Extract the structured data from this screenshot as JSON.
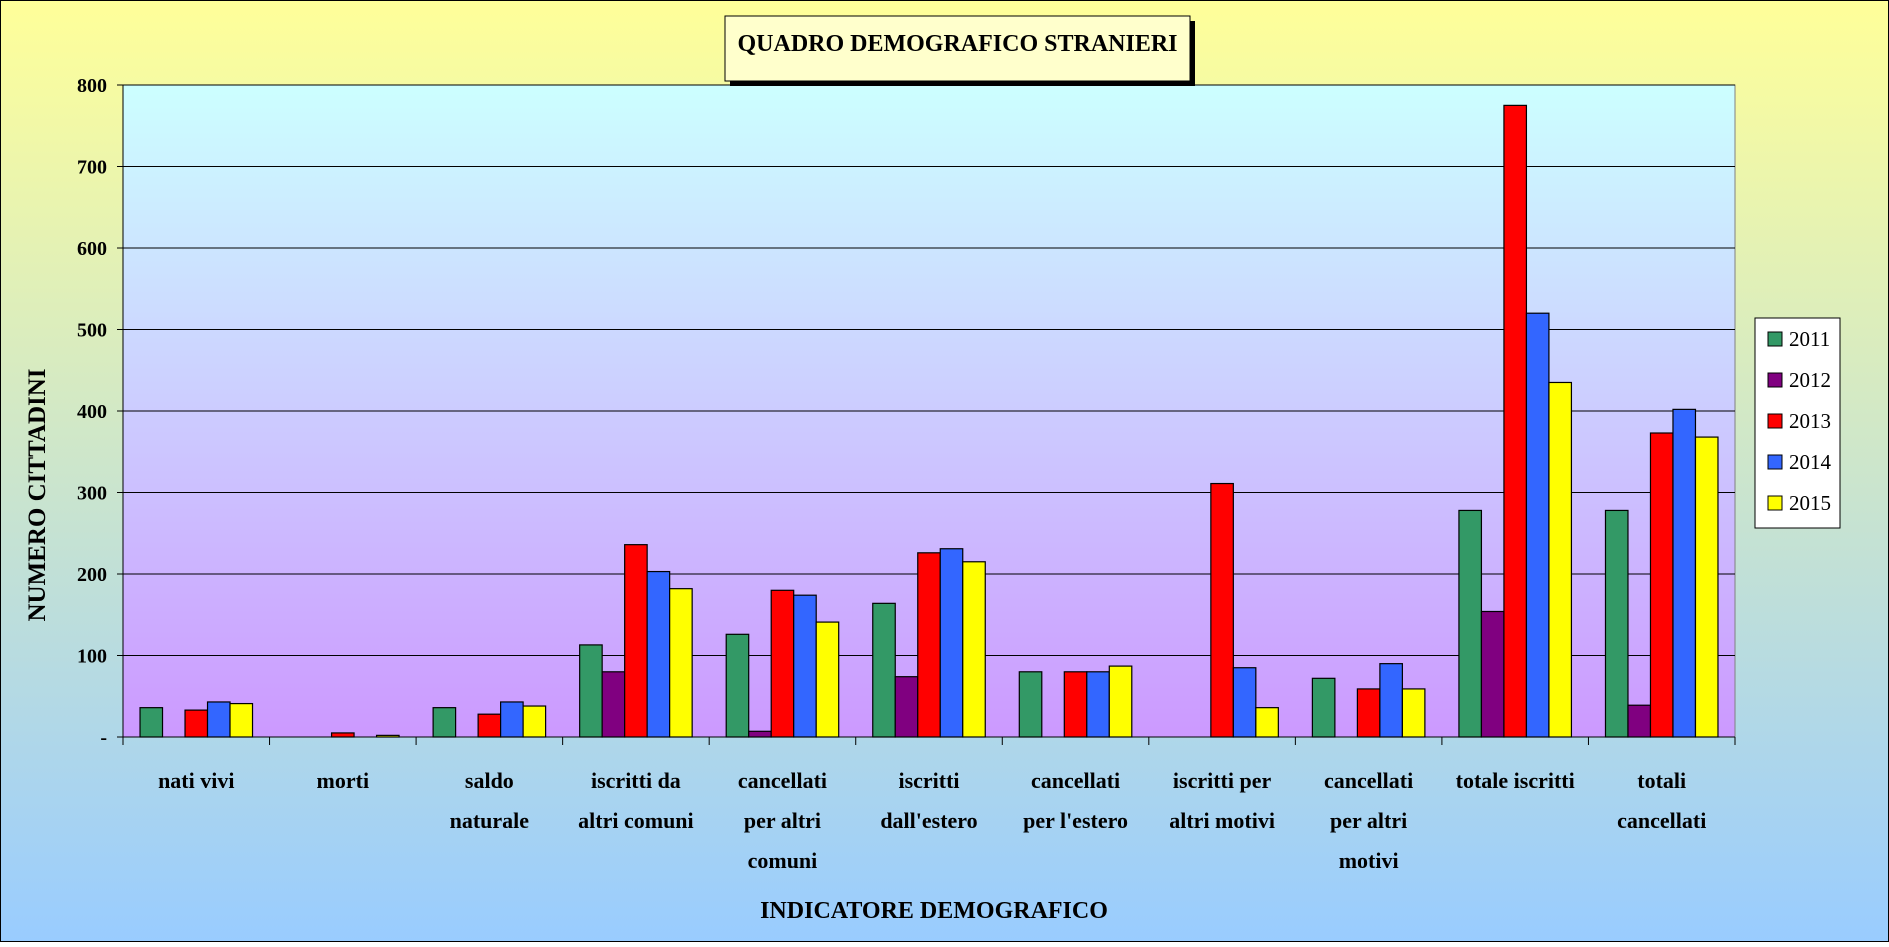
{
  "chart_data": {
    "type": "bar",
    "title": "QUADRO DEMOGRAFICO STRANIERI",
    "xlabel": "INDICATORE DEMOGRAFICO",
    "ylabel": "NUMERO CITTADINI",
    "ylim": [
      0,
      800
    ],
    "yticks": [
      0,
      100,
      200,
      300,
      400,
      500,
      600,
      700,
      800
    ],
    "ytick_labels": [
      "-",
      "100",
      "200",
      "300",
      "400",
      "500",
      "600",
      "700",
      "800"
    ],
    "grid": true,
    "legend_position": "right",
    "categories": [
      [
        "nati vivi"
      ],
      [
        "morti"
      ],
      [
        "saldo",
        "naturale"
      ],
      [
        "iscritti da",
        "altri comuni"
      ],
      [
        "cancellati",
        "per altri",
        "comuni"
      ],
      [
        "iscritti",
        "dall'estero"
      ],
      [
        "cancellati",
        "per l'estero"
      ],
      [
        "iscritti per",
        "altri motivi"
      ],
      [
        "cancellati",
        "per altri",
        "motivi"
      ],
      [
        "totale iscritti"
      ],
      [
        "totali",
        "cancellati"
      ]
    ],
    "series": [
      {
        "name": "2011",
        "color": "#339966",
        "values": [
          36,
          0,
          36,
          113,
          126,
          164,
          80,
          0,
          72,
          278,
          278
        ]
      },
      {
        "name": "2012",
        "color": "#800080",
        "values": [
          0,
          0,
          0,
          80,
          7,
          74,
          0,
          0,
          0,
          154,
          39
        ]
      },
      {
        "name": "2013",
        "color": "#ff0000",
        "values": [
          33,
          5,
          28,
          236,
          180,
          226,
          80,
          311,
          59,
          775,
          373
        ]
      },
      {
        "name": "2014",
        "color": "#3366ff",
        "values": [
          43,
          0,
          43,
          203,
          174,
          231,
          80,
          85,
          90,
          520,
          402
        ]
      },
      {
        "name": "2015",
        "color": "#ffff00",
        "values": [
          41,
          2,
          38,
          182,
          141,
          215,
          87,
          36,
          59,
          435,
          368
        ]
      }
    ]
  }
}
